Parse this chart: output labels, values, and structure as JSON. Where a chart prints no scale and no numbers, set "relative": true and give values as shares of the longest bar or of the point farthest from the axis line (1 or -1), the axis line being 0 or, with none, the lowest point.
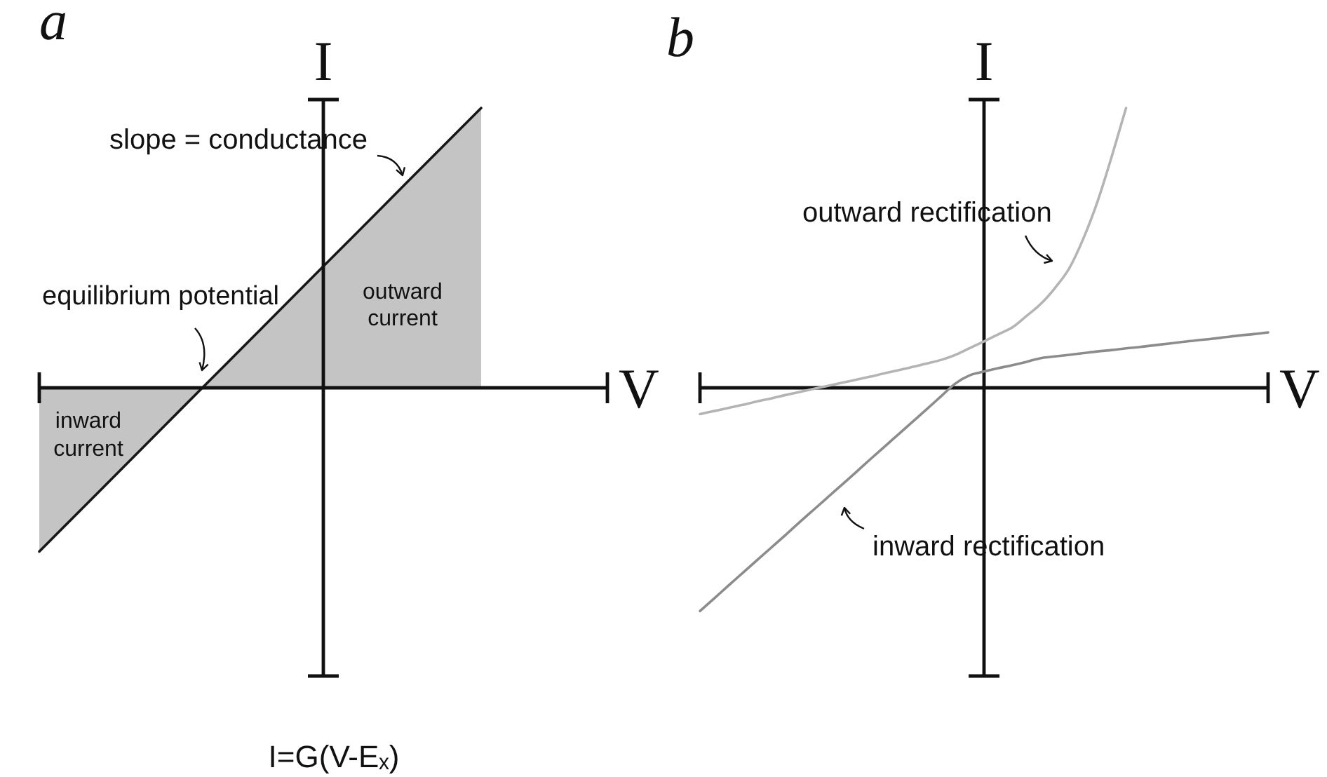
{
  "chart_data": [
    {
      "type": "area",
      "title": "a",
      "xlabel": "V",
      "ylabel": "I",
      "relative": true,
      "categories": [
        null,
        null,
        null,
        null,
        null,
        null,
        null,
        null,
        null,
        null
      ],
      "series": [
        {
          "color": "#c4c4c4",
          "values": [
            -0.585,
            -0.359,
            -0.132,
            0.094,
            0.321,
            0.547,
            0.774,
            1,
            null,
            null
          ]
        }
      ],
      "annotations": [
        "slope = conductance",
        "equilibrium potential",
        "outward current",
        "inward current",
        "I=G(V-Eₓ)"
      ]
    },
    {
      "type": "line",
      "title": "b",
      "xlabel": "V",
      "ylabel": "I",
      "relative": true,
      "categories": [
        null,
        null,
        null,
        null,
        null,
        null,
        null,
        null,
        null,
        null,
        null,
        null,
        null,
        null,
        null,
        null,
        null,
        null,
        null,
        null,
        null,
        null,
        null,
        null,
        null,
        null,
        null,
        null,
        null,
        null,
        null,
        null,
        null,
        null,
        null,
        null,
        null,
        null,
        null,
        null,
        null
      ],
      "series": [
        {
          "name": "outward rectification",
          "color": "#b4b4b4",
          "values": [
            -0.094,
            -0.083,
            -0.072,
            -0.061,
            -0.049,
            -0.038,
            -0.026,
            -0.015,
            -0.004,
            0.007,
            0.018,
            0.029,
            0.04,
            0.052,
            0.063,
            0.075,
            0.087,
            0.1,
            0.118,
            0.142,
            0.166,
            0.191,
            0.216,
            0.257,
            0.3,
            0.357,
            0.427,
            0.534,
            0.667,
            0.828,
            1,
            null,
            null,
            null,
            null,
            null,
            null,
            null,
            null,
            null,
            null
          ]
        },
        {
          "name": "inward rectification",
          "color": "#8c8c8c",
          "values": [
            -0.798,
            -0.753,
            -0.707,
            -0.662,
            -0.617,
            -0.572,
            -0.527,
            -0.481,
            -0.436,
            -0.391,
            -0.346,
            -0.301,
            -0.255,
            -0.21,
            -0.165,
            -0.12,
            -0.075,
            -0.029,
            0.016,
            0.045,
            0.058,
            0.07,
            0.081,
            0.093,
            0.106,
            0.112,
            0.118,
            0.124,
            0.13,
            0.135,
            0.141,
            0.146,
            0.152,
            0.158,
            0.164,
            0.17,
            0.175,
            0.181,
            0.187,
            0.192,
            0.198
          ]
        }
      ]
    }
  ]
}
